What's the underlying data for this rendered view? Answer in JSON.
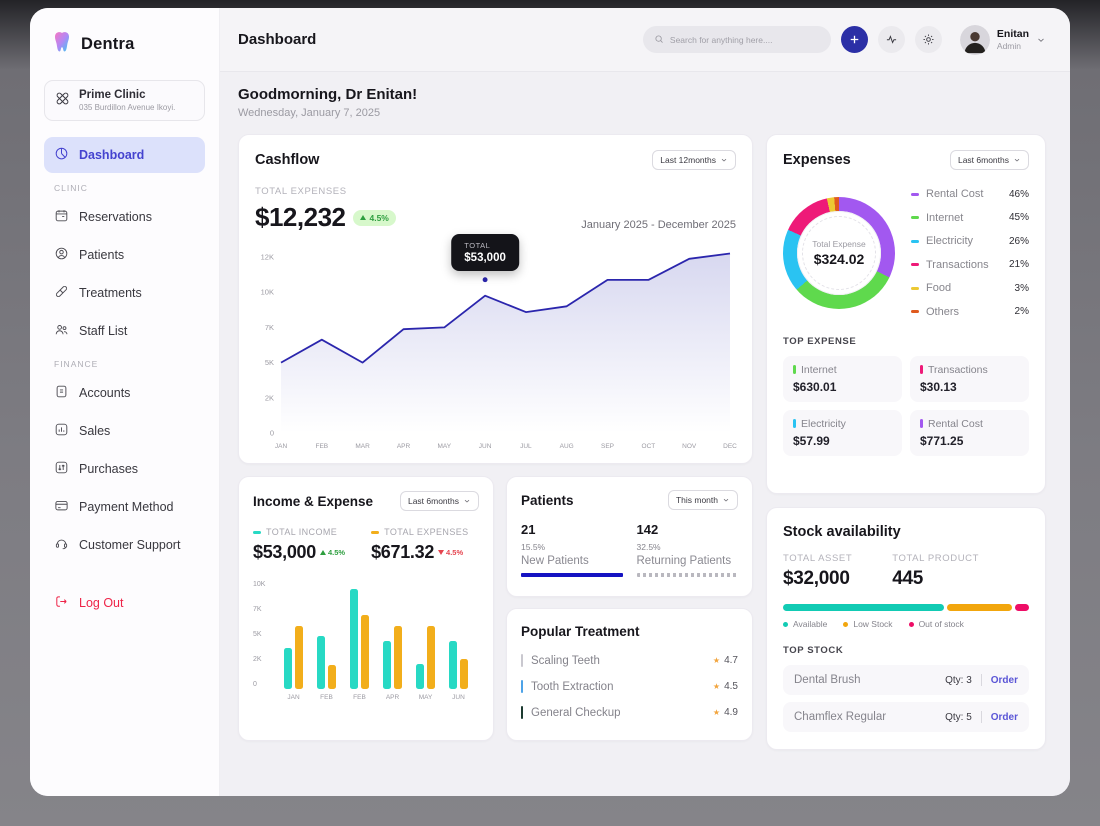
{
  "icons": {
    "star": "★"
  },
  "sidebar": {
    "brand": "Dentra",
    "clinic": {
      "name": "Prime Clinic",
      "address": "035 Burdillon Avenue Ikoyi."
    },
    "dashboard_label": "Dashboard",
    "sections": [
      {
        "label": "CLINIC",
        "items": [
          "Reservations",
          "Patients",
          "Treatments",
          "Staff List"
        ]
      },
      {
        "label": "FINANCE",
        "items": [
          "Accounts",
          "Sales",
          "Purchases",
          "Payment Method",
          "Customer Support"
        ]
      }
    ],
    "logout_label": "Log Out"
  },
  "header": {
    "title": "Dashboard",
    "search_placeholder": "Search for anything here....",
    "user": {
      "name": "Enitan",
      "role": "Admin"
    }
  },
  "greeting": {
    "title": "Goodmorning, Dr Enitan!",
    "date": "Wednesday, January 7, 2025"
  },
  "cashflow": {
    "title": "Cashflow",
    "filter": "Last 12months",
    "metric_label": "TOTAL EXPENSES",
    "metric_value": "$12,232",
    "metric_delta": "4.5%",
    "range_label": "January 2025 - December 2025"
  },
  "expenses": {
    "title": "Expenses",
    "filter": "Last 6months",
    "legend_pcts": [
      "46%",
      "45%",
      "26%",
      "21%",
      "3%",
      "2%"
    ],
    "top_title": "TOP EXPENSE",
    "top_expense": [
      {
        "label": "Internet",
        "value": "$630.01",
        "color": "#5fd94d"
      },
      {
        "label": "Transactions",
        "value": "$30.13",
        "color": "#ee1a78"
      },
      {
        "label": "Electricity",
        "value": "$57.99",
        "color": "#2ac3f2"
      },
      {
        "label": "Rental Cost",
        "value": "$771.25",
        "color": "#a258f0"
      }
    ]
  },
  "income_expense": {
    "title": "Income & Expense",
    "filter": "Last 6months",
    "income_value": "$53,000",
    "income_delta": "4.5%",
    "expense_value": "$671.32",
    "expense_delta": "4.5%"
  },
  "patients": {
    "title": "Patients",
    "filter": "This month",
    "stats": [
      {
        "count": "21",
        "pct": "15.5%",
        "label": "New Patients"
      },
      {
        "count": "142",
        "pct": "32.5%",
        "label": "Returning Patients"
      }
    ]
  },
  "popular_treatment": {
    "title": "Popular Treatment",
    "items": [
      {
        "name": "Scaling Teeth",
        "rating": "4.7",
        "tick": "#c9c8cf"
      },
      {
        "name": "Tooth Extraction",
        "rating": "4.5",
        "tick": "#4da3e8"
      },
      {
        "name": "General Checkup",
        "rating": "4.9",
        "tick": "#1c3a30"
      }
    ]
  },
  "stock": {
    "title": "Stock availability",
    "asset_label": "TOTAL ASSET",
    "asset_value": "$32,000",
    "product_label": "TOTAL PRODUCT",
    "product_value": "445",
    "top_title": "TOP STOCK",
    "items": [
      {
        "name": "Dental Brush",
        "qty": "Qty: 3",
        "action": "Order"
      },
      {
        "name": "Chamflex Regular",
        "qty": "Qty: 5",
        "action": "Order"
      }
    ]
  },
  "chart_data": [
    {
      "id": "cashflow",
      "type": "line",
      "title": "Cashflow",
      "x": [
        "JAN",
        "FEB",
        "MAR",
        "APR",
        "MAY",
        "JUN",
        "JUL",
        "AUG",
        "SEP",
        "OCT",
        "NOV",
        "DEC"
      ],
      "values": [
        5000,
        6300,
        5000,
        6900,
        7000,
        9700,
        8300,
        8800,
        10700,
        10700,
        11900,
        12200
      ],
      "tick_values": [
        0,
        2000,
        5000,
        7000,
        10000,
        12000
      ],
      "tick_labels": [
        "0",
        "2K",
        "5K",
        "7K",
        "10K",
        "12K"
      ],
      "ylim": [
        0,
        12200
      ],
      "line_color": "#2b26ad",
      "highlight": {
        "index": 5,
        "label": "TOTAL",
        "value": "$53,000"
      }
    },
    {
      "id": "expenses",
      "type": "pie",
      "categories": [
        "Rental Cost",
        "Internet",
        "Electricity",
        "Transactions",
        "Food",
        "Others"
      ],
      "values": [
        46,
        45,
        26,
        21,
        3,
        2
      ],
      "colors": [
        "#a258f0",
        "#5fd94d",
        "#2ac3f2",
        "#ee1a78",
        "#ecc933",
        "#df5a1e"
      ],
      "center_label": "Total Expense",
      "center_value": "$324.02"
    },
    {
      "id": "income_expense",
      "type": "bar",
      "categories": [
        "JAN",
        "FEB",
        "FEB",
        "APR",
        "MAY",
        "JUN"
      ],
      "series": [
        {
          "name": "TOTAL INCOME",
          "color": "#27d9c4",
          "values": [
            3900,
            5200,
            10000,
            4800,
            2000,
            4800
          ]
        },
        {
          "name": "TOTAL EXPENSES",
          "color": "#f2ae1b",
          "values": [
            6000,
            1900,
            6900,
            6000,
            6000,
            2600
          ]
        }
      ],
      "tick_values": [
        0,
        2000,
        5000,
        7000,
        10000
      ],
      "tick_labels": [
        "0",
        "2K",
        "5K",
        "7K",
        "10K"
      ],
      "ylim": [
        0,
        10000
      ]
    },
    {
      "id": "stock_availability",
      "type": "bar",
      "segments": [
        {
          "label": "Available",
          "value": 67,
          "color": "#12cbb4"
        },
        {
          "label": "Low Stock",
          "value": 27,
          "color": "#f2a60d"
        },
        {
          "label": "Out of stock",
          "value": 6,
          "color": "#ee0d66"
        }
      ]
    }
  ]
}
